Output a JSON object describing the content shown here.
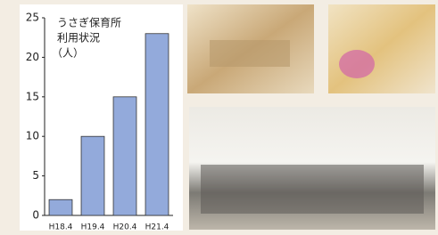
{
  "chart_data": {
    "type": "bar",
    "title": "うさぎ保育所",
    "subtitle": "利用状況",
    "unit": "（人）",
    "categories": [
      "H18.4",
      "H19.4",
      "H20.4",
      "H21.4"
    ],
    "values": [
      2,
      10,
      15,
      23
    ],
    "color": "#93aadb",
    "ylim": [
      0,
      25
    ],
    "yticks": [
      0,
      5,
      10,
      15,
      20,
      25
    ],
    "grid": false
  }
}
